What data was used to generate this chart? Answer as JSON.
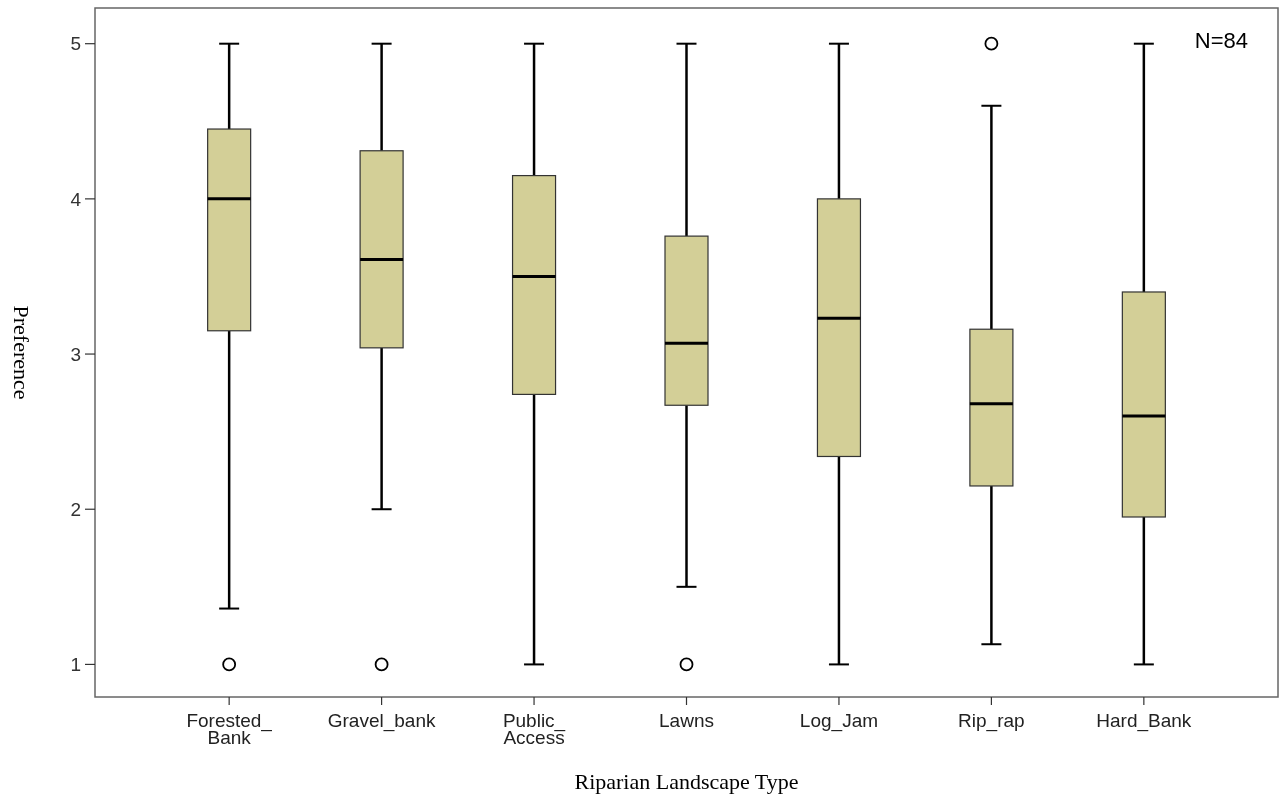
{
  "chart_data": {
    "type": "box",
    "xlabel": "Riparian Landscape Type",
    "ylabel": "Preference",
    "categories": [
      "Forested_\nBank",
      "Gravel_bank",
      "Public_\nAccess",
      "Lawns",
      "Log_Jam",
      "Rip_rap",
      "Hard_Bank"
    ],
    "color": "#d3cf97",
    "boxes": [
      {
        "low": 1.36,
        "q1": 3.15,
        "median": 4.0,
        "q3": 4.45,
        "high": 5,
        "outliers": [
          1
        ]
      },
      {
        "low": 2,
        "q1": 3.04,
        "median": 3.61,
        "q3": 4.31,
        "high": 5,
        "outliers": [
          1
        ]
      },
      {
        "low": 1,
        "q1": 2.74,
        "median": 3.5,
        "q3": 4.15,
        "high": 5
      },
      {
        "low": 1.5,
        "q1": 2.67,
        "median": 3.07,
        "q3": 3.76,
        "high": 5,
        "outliers": [
          1
        ]
      },
      {
        "low": 1,
        "q1": 2.34,
        "median": 3.23,
        "q3": 4.0,
        "high": 5
      },
      {
        "low": 1.13,
        "q1": 2.15,
        "median": 2.68,
        "q3": 3.16,
        "high": 4.6,
        "outliers": [
          5
        ]
      },
      {
        "low": 1,
        "q1": 1.95,
        "median": 2.6,
        "q3": 3.4,
        "high": 5
      }
    ],
    "ylim": [
      0.79,
      5.23
    ],
    "yticks": [
      1,
      2,
      3,
      4,
      5
    ],
    "annotations": [
      "N=84"
    ]
  }
}
